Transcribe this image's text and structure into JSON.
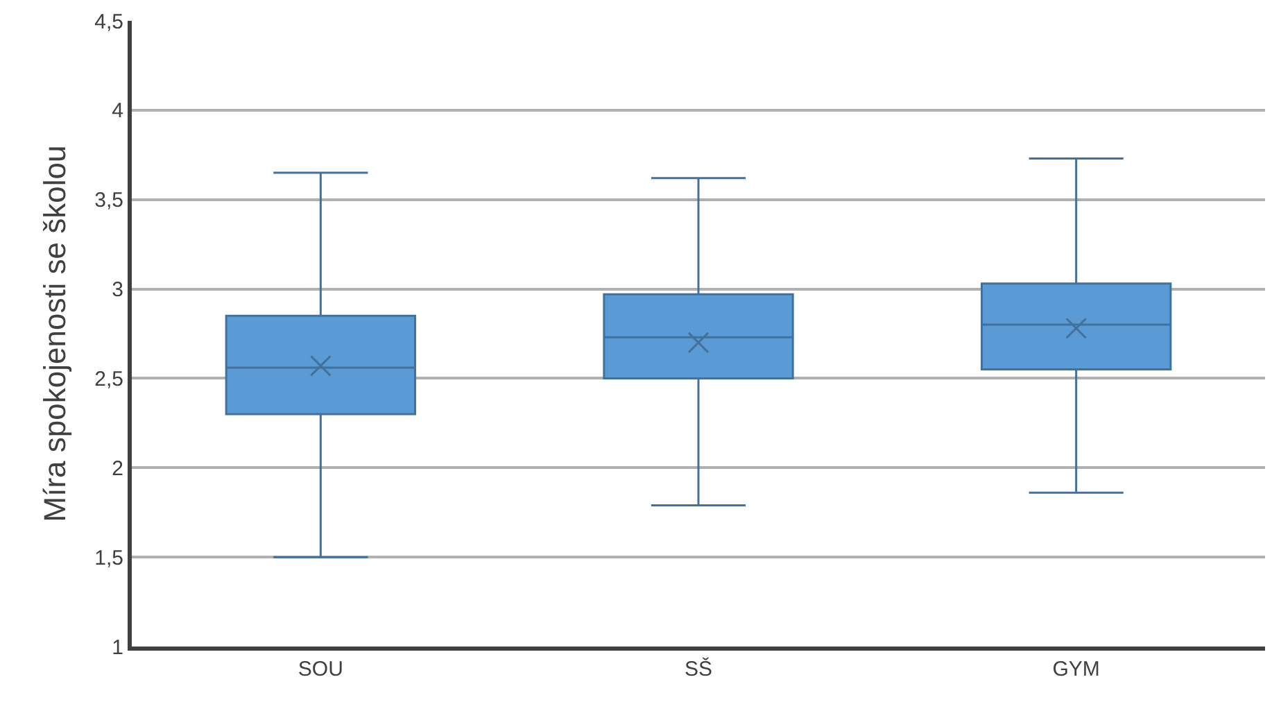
{
  "chart_data": {
    "type": "box",
    "ylabel": "Míra spokojenosti se školou",
    "categories": [
      "SOU",
      "SŠ",
      "GYM"
    ],
    "boxes": [
      {
        "low": 1.5,
        "q1": 2.3,
        "median": 2.56,
        "q3": 2.85,
        "high": 3.65,
        "mean": 2.57
      },
      {
        "low": 1.79,
        "q1": 2.5,
        "median": 2.73,
        "q3": 2.97,
        "high": 3.62,
        "mean": 2.7
      },
      {
        "low": 1.86,
        "q1": 2.55,
        "median": 2.8,
        "q3": 3.03,
        "high": 3.73,
        "mean": 2.78
      }
    ],
    "color": "#5b9bd5",
    "ylim": [
      1,
      4.5
    ],
    "yticks": [
      1,
      {
        "value": 1.5,
        "label": "1,5"
      },
      2,
      {
        "value": 2.5,
        "label": "2,5"
      },
      3,
      {
        "value": 3.5,
        "label": "3,5"
      },
      4,
      {
        "value": 4.5,
        "label": "4,5"
      }
    ],
    "grid": "y"
  }
}
